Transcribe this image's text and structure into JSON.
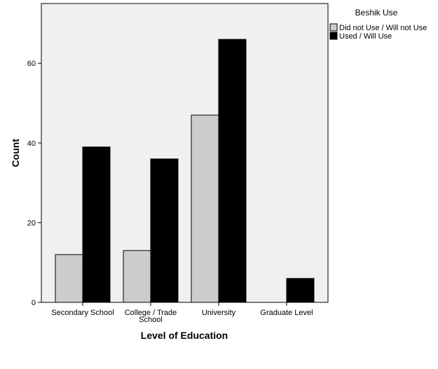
{
  "chart_data": {
    "type": "bar",
    "title": "",
    "xlabel": "Level of Education",
    "ylabel": "Count",
    "categories": [
      "Secondary School",
      "College / Trade School",
      "University",
      "Graduate Level"
    ],
    "category_lines": [
      [
        "Secondary School"
      ],
      [
        "College / Trade",
        "School"
      ],
      [
        "University"
      ],
      [
        "Graduate Level"
      ]
    ],
    "series": [
      {
        "name": "Did not Use / Will not Use",
        "values": [
          12,
          13,
          47,
          0
        ],
        "color": "#cccccc"
      },
      {
        "name": "Used / Will Use",
        "values": [
          39,
          36,
          66,
          6
        ],
        "color": "#000000"
      }
    ],
    "ylim": [
      0,
      75
    ],
    "yticks": [
      0,
      20,
      40,
      60
    ],
    "grid": false,
    "legend": {
      "title": "Beshik Use",
      "placement": "right"
    },
    "colors": {
      "plot_background": "#f0f0f0",
      "frame": "#000000"
    }
  }
}
